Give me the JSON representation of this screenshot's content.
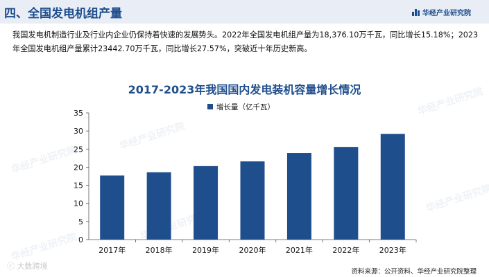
{
  "header": {
    "title": "四、全国发电机组产量",
    "brand": "华经产业研究院"
  },
  "intro": {
    "paragraph": "我国发电机制造行业及行业内企业仍保持着快速的发展势头。2022年全国发电机组产量为18,376.10万千瓦，同比增长15.18%；2023年全国发电机组产量累计23442.70万千瓦，同比增长27.57%，突破近十年历史新高。"
  },
  "watermark": {
    "text": "华经产业研究院"
  },
  "footer": {
    "logo": "大数跨境",
    "source": "资料来源：公开资料、华经产业研究院整理"
  },
  "colors": {
    "bar": "#1f4e8c",
    "title": "#1f4e8c",
    "header_bg": "#e8edf6"
  },
  "chart_data": {
    "type": "bar",
    "title": "2017-2023年我国国内发电装机容量增长情况",
    "categories": [
      "2017年",
      "2018年",
      "2019年",
      "2020年",
      "2021年",
      "2022年",
      "2023年"
    ],
    "series": [
      {
        "name": "增长量（亿千瓦）",
        "values": [
          17.7,
          18.6,
          20.3,
          21.6,
          23.9,
          25.6,
          29.2
        ]
      }
    ],
    "xlabel": "",
    "ylabel": "",
    "ylim": [
      0,
      35
    ],
    "yticks": [
      0,
      5,
      10,
      15,
      20,
      25,
      30,
      35
    ],
    "grid": false,
    "legend": "top-left"
  }
}
